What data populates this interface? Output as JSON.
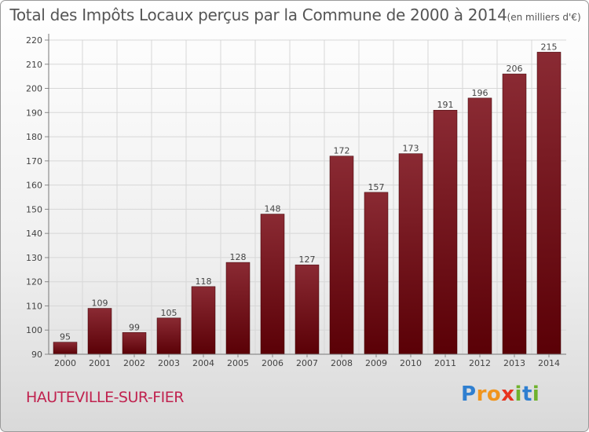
{
  "header": {
    "title": "Total des Impôts Locaux perçus par la Commune de 2000 à 2014",
    "unit_note": "(en milliers d'€)"
  },
  "footer": {
    "commune": "HAUTEVILLE-SUR-FIER",
    "brand_letters": [
      {
        "ch": "P",
        "color": "#2f7fd0"
      },
      {
        "ch": "r",
        "color": "#f0951e"
      },
      {
        "ch": "o",
        "color": "#f0951e"
      },
      {
        "ch": "x",
        "color": "#e8331f"
      },
      {
        "ch": "i",
        "color": "#6fb22d"
      },
      {
        "ch": "t",
        "color": "#2f7fd0"
      },
      {
        "ch": "i",
        "color": "#6fb22d"
      }
    ]
  },
  "chart_data": {
    "type": "bar",
    "title": "Total des Impôts Locaux perçus par la Commune de 2000 à 2014",
    "xlabel": "",
    "ylabel": "",
    "categories": [
      "2000",
      "2001",
      "2002",
      "2003",
      "2004",
      "2005",
      "2006",
      "2007",
      "2008",
      "2009",
      "2010",
      "2011",
      "2012",
      "2013",
      "2014"
    ],
    "values": [
      95,
      109,
      99,
      105,
      118,
      128,
      148,
      127,
      172,
      157,
      173,
      191,
      196,
      206,
      215
    ],
    "ylim": [
      90,
      220
    ],
    "yticks": [
      90,
      100,
      110,
      120,
      130,
      140,
      150,
      160,
      170,
      180,
      190,
      200,
      210,
      220
    ],
    "grid": true,
    "bar_color_top": "#8a2a33",
    "bar_color_bottom": "#5a0006"
  }
}
